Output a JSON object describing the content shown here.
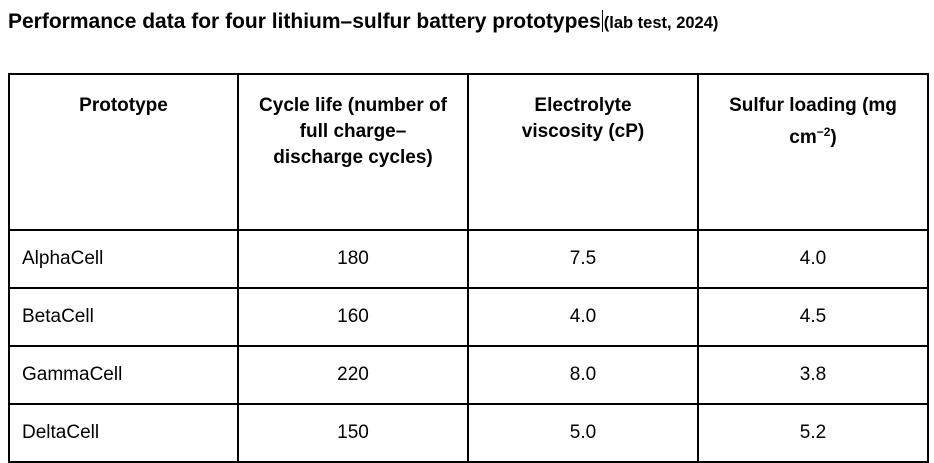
{
  "header": {
    "title": "Performance data for four lithium–sulfur battery prototypes",
    "subtitle": "(lab test, 2024)"
  },
  "table": {
    "columns": [
      "Prototype",
      "Cycle life (number of full charge–discharge cycles)",
      "Electrolyte viscosity (cP)",
      {
        "text": "Sulfur loading (mg cm",
        "superscript": "−2",
        "suffix": ")"
      }
    ],
    "rows": [
      [
        "AlphaCell",
        "180",
        "7.5",
        "4.0"
      ],
      [
        "BetaCell",
        "160",
        "4.0",
        "4.5"
      ],
      [
        "GammaCell",
        "220",
        "8.0",
        "3.8"
      ],
      [
        "DeltaCell",
        "150",
        "5.0",
        "5.2"
      ]
    ]
  }
}
